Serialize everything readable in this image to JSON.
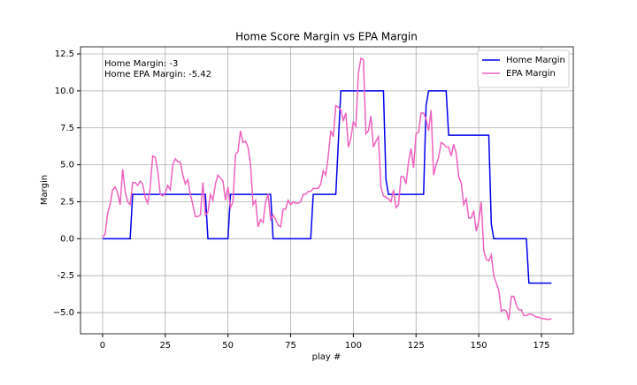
{
  "chart_data": {
    "type": "line",
    "title": "Home Score Margin vs EPA Margin",
    "x_label": "play #",
    "y_label": "Margin",
    "annotations": [
      "Home Margin: -3",
      "Home EPA Margin: -5.42"
    ],
    "xlim": [
      -8.8,
      187.7
    ],
    "ylim": [
      -6.43,
      12.98
    ],
    "xticks": [
      0,
      25,
      50,
      75,
      100,
      125,
      150,
      175
    ],
    "yticks": [
      {
        "value": -5,
        "label": "−5.0"
      },
      -2.5,
      {
        "value": 0,
        "label": "0.0"
      },
      2.5,
      {
        "value": 5,
        "label": "5.0"
      },
      7.5,
      {
        "value": 10,
        "label": "10.0"
      },
      12.5
    ],
    "grid": true,
    "legend": "upper right",
    "series": [
      {
        "name": "Home Margin",
        "color": "#0000ee",
        "x": [
          0,
          11,
          12,
          41,
          42,
          50,
          51,
          67,
          68,
          83,
          84,
          93,
          95,
          112,
          113,
          114,
          128,
          129,
          130,
          137,
          138,
          154,
          155,
          156,
          169,
          170,
          179
        ],
        "values": [
          0,
          0,
          3,
          3,
          0,
          0,
          3,
          3,
          0,
          0,
          3,
          3,
          10,
          10,
          4,
          3,
          3,
          9,
          10,
          10,
          7,
          7,
          1,
          0,
          0,
          -3,
          -3
        ]
      },
      {
        "name": "EPA Margin",
        "color": "#f062c0",
        "x": [
          0,
          1,
          2,
          3,
          4,
          5,
          6,
          7,
          8,
          9,
          10,
          11,
          12,
          13,
          14,
          15,
          16,
          17,
          18,
          19,
          20,
          21,
          22,
          23,
          24,
          25,
          26,
          27,
          28,
          29,
          30,
          31,
          32,
          33,
          34,
          35,
          36,
          37,
          38,
          39,
          40,
          41,
          42,
          43,
          44,
          45,
          46,
          47,
          48,
          49,
          50,
          51,
          52,
          53,
          54,
          55,
          56,
          57,
          58,
          59,
          60,
          61,
          62,
          63,
          64,
          65,
          66,
          67,
          68,
          69,
          70,
          71,
          72,
          73,
          74,
          75,
          76,
          77,
          78,
          79,
          80,
          81,
          82,
          83,
          84,
          85,
          86,
          87,
          88,
          89,
          90,
          91,
          92,
          93,
          94,
          95,
          96,
          97,
          98,
          99,
          100,
          101,
          102,
          103,
          104,
          105,
          106,
          107,
          108,
          109,
          110,
          111,
          112,
          113,
          114,
          115,
          116,
          117,
          118,
          119,
          120,
          121,
          122,
          123,
          124,
          125,
          126,
          127,
          128,
          129,
          130,
          131,
          132,
          133,
          134,
          135,
          136,
          137,
          138,
          139,
          140,
          141,
          142,
          143,
          144,
          145,
          146,
          147,
          148,
          149,
          150,
          151,
          152,
          153,
          154,
          155,
          156,
          157,
          158,
          159,
          160,
          161,
          162,
          163,
          164,
          165,
          166,
          167,
          168,
          169,
          170,
          171,
          172,
          173,
          174,
          175,
          176,
          177,
          178,
          179
        ],
        "values": [
          0.1,
          0.3,
          1.7,
          2.3,
          3.3,
          3.5,
          3.1,
          2.3,
          4.7,
          3.2,
          2.5,
          2.3,
          3.8,
          3.8,
          3.6,
          3.9,
          3.7,
          2.8,
          2.4,
          3.5,
          5.6,
          5.5,
          4.6,
          3.0,
          2.9,
          3.1,
          3.6,
          3.3,
          5.0,
          5.4,
          5.2,
          5.2,
          4.3,
          3.7,
          4.0,
          3.0,
          2.3,
          1.5,
          1.5,
          1.6,
          3.8,
          1.6,
          1.8,
          3.0,
          2.6,
          3.7,
          4.3,
          4.1,
          3.9,
          2.6,
          3.5,
          2.1,
          2.5,
          5.7,
          5.9,
          7.3,
          6.5,
          6.6,
          6.2,
          5.0,
          2.3,
          2.6,
          0.8,
          1.3,
          1.1,
          2.5,
          3.0,
          1.3,
          1.6,
          1.3,
          0.9,
          0.8,
          2.0,
          2.0,
          2.6,
          2.3,
          2.5,
          2.4,
          2.4,
          2.5,
          3.0,
          3.0,
          3.2,
          3.2,
          3.4,
          3.4,
          3.4,
          3.7,
          4.6,
          4.3,
          5.6,
          7.3,
          6.9,
          9.0,
          8.9,
          8.7,
          8.0,
          8.5,
          6.2,
          6.8,
          7.9,
          7.6,
          11.2,
          12.2,
          12.1,
          7.1,
          7.3,
          8.3,
          6.2,
          6.6,
          6.9,
          3.5,
          2.9,
          2.8,
          2.7,
          2.5,
          3.3,
          2.1,
          2.3,
          4.2,
          4.2,
          3.7,
          5.2,
          6.1,
          4.8,
          7.1,
          7.2,
          8.5,
          8.5,
          8.1,
          7.3,
          8.7,
          4.3,
          5.0,
          5.5,
          6.5,
          6.4,
          6.2,
          6.2,
          5.6,
          6.4,
          5.8,
          4.2,
          3.8,
          2.3,
          2.7,
          1.4,
          1.4,
          1.9,
          0.5,
          1.2,
          2.5,
          -0.8,
          -1.4,
          -1.5,
          -1.1,
          -2.5,
          -3.0,
          -3.5,
          -4.9,
          -4.8,
          -4.9,
          -5.5,
          -3.9,
          -3.9,
          -4.5,
          -4.8,
          -4.8,
          -5.2,
          -5.2,
          -5.1,
          -5.1,
          -5.2,
          -5.3,
          -5.3,
          -5.4,
          -5.4,
          -5.45,
          -5.45,
          -5.42
        ]
      }
    ]
  }
}
